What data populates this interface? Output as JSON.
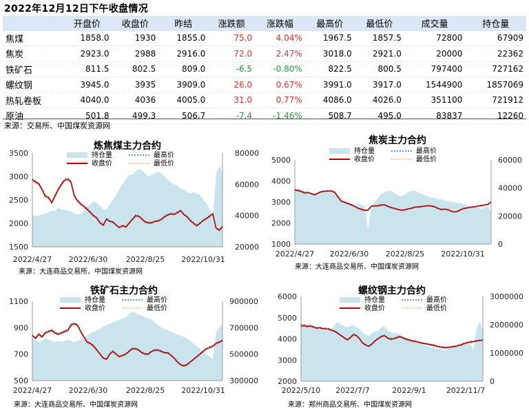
{
  "title": "2022年12月12日下午收盘情况",
  "table": {
    "headers": [
      "",
      "开盘价",
      "收盘价",
      "昨结",
      "涨跌额",
      "涨跌幅",
      "最高价",
      "最低价",
      "成交量",
      "持仓量"
    ],
    "rows": [
      [
        "焦煤",
        "1858.0",
        "1930",
        "1855.0",
        "75.0",
        "4.04%",
        "1967.5",
        "1857.5",
        "72800",
        "67909"
      ],
      [
        "焦炭",
        "2923.0",
        "2988",
        "2916.0",
        "72.0",
        "2.47%",
        "3018.0",
        "2921.0",
        "20000",
        "22362"
      ],
      [
        "铁矿石",
        "811.5",
        "802.5",
        "809.0",
        "-6.5",
        "-0.80%",
        "822.5",
        "800.5",
        "797400",
        "727162"
      ],
      [
        "螺纹钢",
        "3945.0",
        "3935",
        "3909.0",
        "26.0",
        "0.67%",
        "3991.0",
        "3917.0",
        "1544900",
        "1857069"
      ],
      [
        "热轧卷板",
        "4040.0",
        "4036",
        "4005.0",
        "31.0",
        "0.77%",
        "4086.0",
        "4026.0",
        "351100",
        "721912"
      ],
      [
        "原油",
        "501.8",
        "499.3",
        "506.7",
        "-7.4",
        "-1.46%",
        "508.7",
        "495.0",
        "83837",
        "12260"
      ]
    ],
    "source": "来源：交易所、中国煤炭资源网"
  },
  "colors": {
    "up": "#e8302f",
    "down": "#1a9e3a",
    "header_bg": "#dbe7f5",
    "open_interest": "#c9e4ec",
    "close": "#c00000",
    "high": "#2e75b6",
    "low": "#f4b183"
  },
  "chart_data": [
    {
      "type": "line",
      "title": "炼焦煤主力合约",
      "x_ticks": [
        "2022/4/27",
        "2022/6/30",
        "2022/8/25",
        "2022/10/31"
      ],
      "ylim_left": [
        1500,
        3500
      ],
      "yticks_left": [
        1500,
        2000,
        2500,
        3000,
        3500
      ],
      "ylim_right": [
        20000,
        80000
      ],
      "yticks_right": [
        20000,
        40000,
        60000,
        80000
      ],
      "legend": [
        "持仓量",
        "最高价",
        "收盘价",
        "最低价"
      ],
      "close": [
        2930,
        2880,
        2840,
        2720,
        2580,
        2550,
        2440,
        2580,
        2720,
        2830,
        2920,
        2940,
        2880,
        2590,
        2480,
        2410,
        2360,
        2300,
        2230,
        2160,
        2110,
        2010,
        1960,
        2090,
        2040,
        2030,
        1960,
        1910,
        1950,
        1920,
        2000,
        2080,
        2160,
        2150,
        2090,
        2030,
        2010,
        2010,
        2040,
        2050,
        2080,
        2140,
        2180,
        2200,
        2190,
        2230,
        2270,
        2190,
        2140,
        2060,
        2000,
        1950,
        2000,
        2060,
        2100,
        2150,
        2200,
        1900,
        1850,
        1930
      ],
      "open_interest": [
        40000,
        40000,
        40000,
        41000,
        41000,
        42000,
        43000,
        43000,
        45000,
        44000,
        44000,
        43000,
        43000,
        41000,
        41000,
        41000,
        43000,
        46000,
        47000,
        49000,
        48000,
        46000,
        44000,
        44000,
        47000,
        50000,
        53000,
        57000,
        60000,
        63000,
        66000,
        66000,
        68000,
        70000,
        69000,
        67000,
        65000,
        66000,
        67000,
        68000,
        67000,
        65000,
        63000,
        61000,
        60000,
        59000,
        57000,
        57000,
        55000,
        54000,
        55000,
        54000,
        53000,
        50000,
        48000,
        44000,
        38000,
        66000,
        72000,
        68000
      ],
      "source": "来源：大连商品交易所、中国煤炭资源网"
    },
    {
      "type": "line",
      "title": "焦炭主力合约",
      "x_ticks": [
        "2022/4/27",
        "2022/6/30",
        "2022/8/25",
        "2022/10/31"
      ],
      "ylim_left": [
        1000,
        5000
      ],
      "yticks_left": [
        1000,
        2000,
        3000,
        4000,
        5000
      ],
      "ylim_right": [
        0,
        60000
      ],
      "yticks_right": [
        0,
        20000,
        40000,
        60000
      ],
      "legend": [
        "持仓量",
        "最高价",
        "收盘价",
        "最低价"
      ],
      "close": [
        3560,
        3550,
        3490,
        3430,
        3450,
        3390,
        3340,
        3420,
        3490,
        3510,
        3520,
        3520,
        3460,
        3230,
        3030,
        2980,
        2920,
        2860,
        2790,
        2700,
        2650,
        2600,
        2620,
        2800,
        2810,
        2820,
        2860,
        2860,
        2790,
        2730,
        2690,
        2640,
        2610,
        2620,
        2670,
        2700,
        2750,
        2760,
        2780,
        2800,
        2820,
        2810,
        2770,
        2700,
        2640,
        2660,
        2630,
        2560,
        2520,
        2560,
        2640,
        2700,
        2720,
        2750,
        2770,
        2800,
        2830,
        2850,
        2890,
        2988
      ],
      "open_interest": [
        40000,
        39000,
        39000,
        38000,
        37000,
        36000,
        35000,
        36000,
        37000,
        38000,
        38000,
        38000,
        37000,
        35000,
        33000,
        31000,
        30000,
        29000,
        28000,
        29000,
        28000,
        27000,
        10000,
        26000,
        30000,
        33000,
        36000,
        37000,
        38000,
        38000,
        36000,
        35000,
        34000,
        35000,
        37000,
        38000,
        38000,
        37000,
        36000,
        35000,
        34000,
        33000,
        33000,
        32000,
        32000,
        31000,
        31000,
        30000,
        30000,
        29000,
        29000,
        28000,
        28000,
        27000,
        27000,
        26000,
        25000,
        26000,
        27000,
        22362
      ],
      "source": "来源：大连商品交易所、中国煤炭资源网"
    },
    {
      "type": "line",
      "title": "铁矿石主力合约",
      "x_ticks": [
        "2022/4/27",
        "2022/6/30",
        "2022/8/25",
        "2022/10/31"
      ],
      "ylim_left": [
        500,
        1100
      ],
      "yticks_left": [
        500,
        700,
        900,
        1100
      ],
      "ylim_right": [
        300000,
        900000
      ],
      "yticks_right": [
        300000,
        500000,
        700000,
        900000
      ],
      "legend": [
        "持仓量",
        "最高价",
        "收盘价",
        "最低价"
      ],
      "close": [
        840,
        820,
        850,
        830,
        860,
        870,
        880,
        860,
        850,
        860,
        870,
        880,
        920,
        930,
        920,
        870,
        830,
        790,
        780,
        760,
        730,
        700,
        670,
        660,
        700,
        720,
        700,
        680,
        690,
        700,
        720,
        740,
        740,
        730,
        710,
        700,
        700,
        720,
        730,
        730,
        720,
        710,
        710,
        690,
        670,
        640,
        620,
        610,
        620,
        640,
        660,
        680,
        700,
        720,
        740,
        750,
        760,
        780,
        790,
        802.5
      ],
      "open_interest": [
        620000,
        610000,
        590000,
        600000,
        620000,
        610000,
        600000,
        590000,
        600000,
        590000,
        600000,
        610000,
        600000,
        590000,
        600000,
        610000,
        620000,
        640000,
        660000,
        670000,
        680000,
        690000,
        710000,
        720000,
        730000,
        740000,
        750000,
        760000,
        770000,
        780000,
        800000,
        820000,
        810000,
        800000,
        790000,
        780000,
        770000,
        760000,
        740000,
        720000,
        700000,
        690000,
        680000,
        670000,
        660000,
        650000,
        640000,
        630000,
        620000,
        600000,
        580000,
        560000,
        540000,
        520000,
        500000,
        480000,
        460000,
        660000,
        700000,
        727162
      ],
      "source": "来源：大连商品交易所、中国煤炭资源网"
    },
    {
      "type": "line",
      "title": "螺纹钢主力合约",
      "x_ticks": [
        "2022/5/10",
        "2022/7/7",
        "2022/9/1",
        "2022/11/7"
      ],
      "ylim_left": [
        2000,
        6000
      ],
      "yticks_left": [
        2000,
        3000,
        4000,
        5000,
        6000
      ],
      "ylim_right": [
        0,
        3000000
      ],
      "yticks_right": [
        0,
        1000000,
        2000000,
        3000000
      ],
      "legend": [
        "持仓量",
        "最高价",
        "收盘价",
        "最低价"
      ],
      "close": [
        4600,
        4620,
        4580,
        4600,
        4560,
        4500,
        4520,
        4480,
        4470,
        4460,
        4400,
        4350,
        4250,
        4150,
        4050,
        3950,
        4050,
        4200,
        4150,
        4000,
        3800,
        3700,
        3650,
        3750,
        3900,
        4000,
        4100,
        4150,
        4050,
        3980,
        4000,
        4050,
        4100,
        4050,
        3980,
        3950,
        3900,
        3880,
        3850,
        3800,
        3780,
        3750,
        3720,
        3700,
        3650,
        3620,
        3600,
        3580,
        3600,
        3620,
        3640,
        3680,
        3720,
        3780,
        3820,
        3850,
        3870,
        3900,
        3920,
        3935
      ],
      "open_interest": [
        2050000,
        2030000,
        2000000,
        1950000,
        1900000,
        1870000,
        1850000,
        1820000,
        1800000,
        1780000,
        1850000,
        2000000,
        2100000,
        2000000,
        1950000,
        1900000,
        1950000,
        2000000,
        1900000,
        1850000,
        1700000,
        1650000,
        1600000,
        1700000,
        1750000,
        1800000,
        1900000,
        1950000,
        1800000,
        1750000,
        1700000,
        1700000,
        1650000,
        1600000,
        1550000,
        1500000,
        1450000,
        1400000,
        1350000,
        1300000,
        1250000,
        1250000,
        1200000,
        1200000,
        1150000,
        1150000,
        1100000,
        1100000,
        1150000,
        1200000,
        1200000,
        1250000,
        1300000,
        1350000,
        1350000,
        1300000,
        1100000,
        1900000,
        2100000,
        1857069
      ],
      "source": "来源：郑州商品交易所、中国煤炭资源网"
    }
  ]
}
